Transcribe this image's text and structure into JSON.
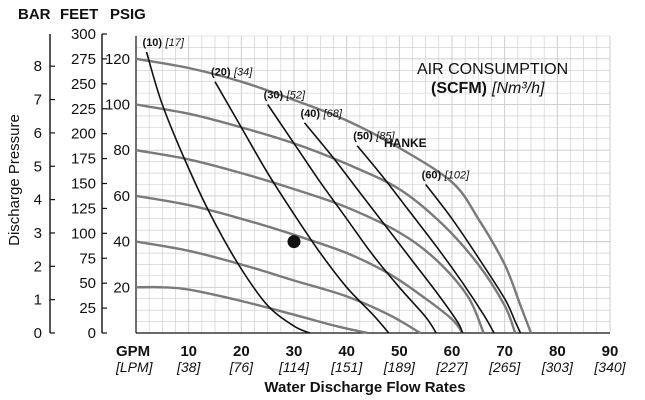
{
  "chart_data": {
    "type": "line",
    "units_header": {
      "bar": "BAR",
      "feet": "FEET",
      "psig": "PSIG"
    },
    "ylabel": "Discharge Pressure",
    "xlabel": "Water Discharge Flow Rates",
    "x_unit_gpm": "GPM",
    "x_unit_lpm": "[LPM]",
    "xlim": [
      0,
      90
    ],
    "ylim": [
      0,
      130
    ],
    "x_ticks": [
      {
        "gpm": "10",
        "lpm": "[38]",
        "v": 10
      },
      {
        "gpm": "20",
        "lpm": "[76]",
        "v": 20
      },
      {
        "gpm": "30",
        "lpm": "[114]",
        "v": 30
      },
      {
        "gpm": "40",
        "lpm": "[151]",
        "v": 40
      },
      {
        "gpm": "50",
        "lpm": "[189]",
        "v": 50
      },
      {
        "gpm": "60",
        "lpm": "[227]",
        "v": 60
      },
      {
        "gpm": "70",
        "lpm": "[265]",
        "v": 70
      },
      {
        "gpm": "80",
        "lpm": "[303]",
        "v": 80
      },
      {
        "gpm": "90",
        "lpm": "[340]",
        "v": 90
      }
    ],
    "psig_ticks": [
      "20",
      "40",
      "60",
      "80",
      "100",
      "120"
    ],
    "psig_tick_values": [
      20,
      40,
      60,
      80,
      100,
      120
    ],
    "feet_ticks": [
      "0",
      "25",
      "50",
      "75",
      "100",
      "125",
      "150",
      "175",
      "200",
      "225",
      "250",
      "275",
      "300"
    ],
    "bar_ticks": [
      "0",
      "1",
      "2",
      "3",
      "4",
      "5",
      "6",
      "7",
      "8"
    ],
    "legend": {
      "title": "AIR CONSUMPTION",
      "unit_bold": "(SCFM)",
      "unit_italic": "[Nm³/h]"
    },
    "brand": "HANKE",
    "curve_labels": [
      {
        "scfm": "(10)",
        "nm3": "[17]"
      },
      {
        "scfm": "(20)",
        "nm3": "[34]"
      },
      {
        "scfm": "(30)",
        "nm3": "[52]"
      },
      {
        "scfm": "(40)",
        "nm3": "[68]"
      },
      {
        "scfm": "(50)",
        "nm3": "[85]"
      },
      {
        "scfm": "(60)",
        "nm3": "[102]"
      }
    ],
    "inlet_pressure_curves": [
      {
        "points": [
          [
            0,
            120
          ],
          [
            10,
            116
          ],
          [
            20,
            110
          ],
          [
            30,
            102
          ],
          [
            40,
            93
          ],
          [
            50,
            81
          ],
          [
            60,
            66
          ],
          [
            65,
            50
          ],
          [
            70,
            30
          ],
          [
            73,
            12
          ],
          [
            75,
            0
          ]
        ]
      },
      {
        "points": [
          [
            0,
            100
          ],
          [
            10,
            96
          ],
          [
            20,
            90
          ],
          [
            30,
            83
          ],
          [
            40,
            74
          ],
          [
            50,
            63
          ],
          [
            58,
            48
          ],
          [
            65,
            30
          ],
          [
            70,
            12
          ],
          [
            72,
            0
          ]
        ]
      },
      {
        "points": [
          [
            0,
            80
          ],
          [
            10,
            76
          ],
          [
            20,
            70
          ],
          [
            30,
            63
          ],
          [
            40,
            55
          ],
          [
            50,
            44
          ],
          [
            57,
            32
          ],
          [
            63,
            16
          ],
          [
            66,
            0
          ]
        ]
      },
      {
        "points": [
          [
            0,
            60
          ],
          [
            10,
            56
          ],
          [
            20,
            50
          ],
          [
            30,
            43
          ],
          [
            40,
            35
          ],
          [
            48,
            26
          ],
          [
            55,
            15
          ],
          [
            60,
            6
          ],
          [
            62,
            0
          ]
        ]
      },
      {
        "points": [
          [
            0,
            40
          ],
          [
            10,
            36
          ],
          [
            20,
            30
          ],
          [
            30,
            23
          ],
          [
            40,
            16
          ],
          [
            48,
            8
          ],
          [
            54,
            0
          ]
        ]
      },
      {
        "points": [
          [
            0,
            20
          ],
          [
            5,
            20
          ],
          [
            10,
            19
          ],
          [
            20,
            14
          ],
          [
            30,
            8
          ],
          [
            38,
            3
          ],
          [
            44,
            0
          ]
        ]
      }
    ],
    "air_consumption_curves": [
      {
        "points": [
          [
            2,
            123
          ],
          [
            5,
            100
          ],
          [
            10,
            72
          ],
          [
            15,
            48
          ],
          [
            20,
            28
          ],
          [
            25,
            12
          ],
          [
            30,
            3
          ],
          [
            33,
            0
          ]
        ]
      },
      {
        "points": [
          [
            15,
            110
          ],
          [
            20,
            90
          ],
          [
            25,
            70
          ],
          [
            30,
            52
          ],
          [
            35,
            35
          ],
          [
            40,
            20
          ],
          [
            45,
            8
          ],
          [
            48,
            0
          ]
        ]
      },
      {
        "points": [
          [
            25,
            100
          ],
          [
            30,
            83
          ],
          [
            35,
            66
          ],
          [
            40,
            50
          ],
          [
            45,
            34
          ],
          [
            50,
            20
          ],
          [
            55,
            7
          ],
          [
            57,
            0
          ]
        ]
      },
      {
        "points": [
          [
            32,
            92
          ],
          [
            37,
            78
          ],
          [
            42,
            63
          ],
          [
            47,
            48
          ],
          [
            52,
            33
          ],
          [
            57,
            18
          ],
          [
            61,
            5
          ],
          [
            62,
            0
          ]
        ]
      },
      {
        "points": [
          [
            42,
            82
          ],
          [
            47,
            68
          ],
          [
            52,
            53
          ],
          [
            57,
            38
          ],
          [
            62,
            22
          ],
          [
            66,
            8
          ],
          [
            68,
            0
          ]
        ]
      },
      {
        "points": [
          [
            55,
            65
          ],
          [
            60,
            50
          ],
          [
            65,
            33
          ],
          [
            70,
            15
          ],
          [
            72,
            5
          ],
          [
            73,
            0
          ]
        ]
      }
    ],
    "marker": {
      "x": 30,
      "y": 40
    },
    "grid": true
  }
}
